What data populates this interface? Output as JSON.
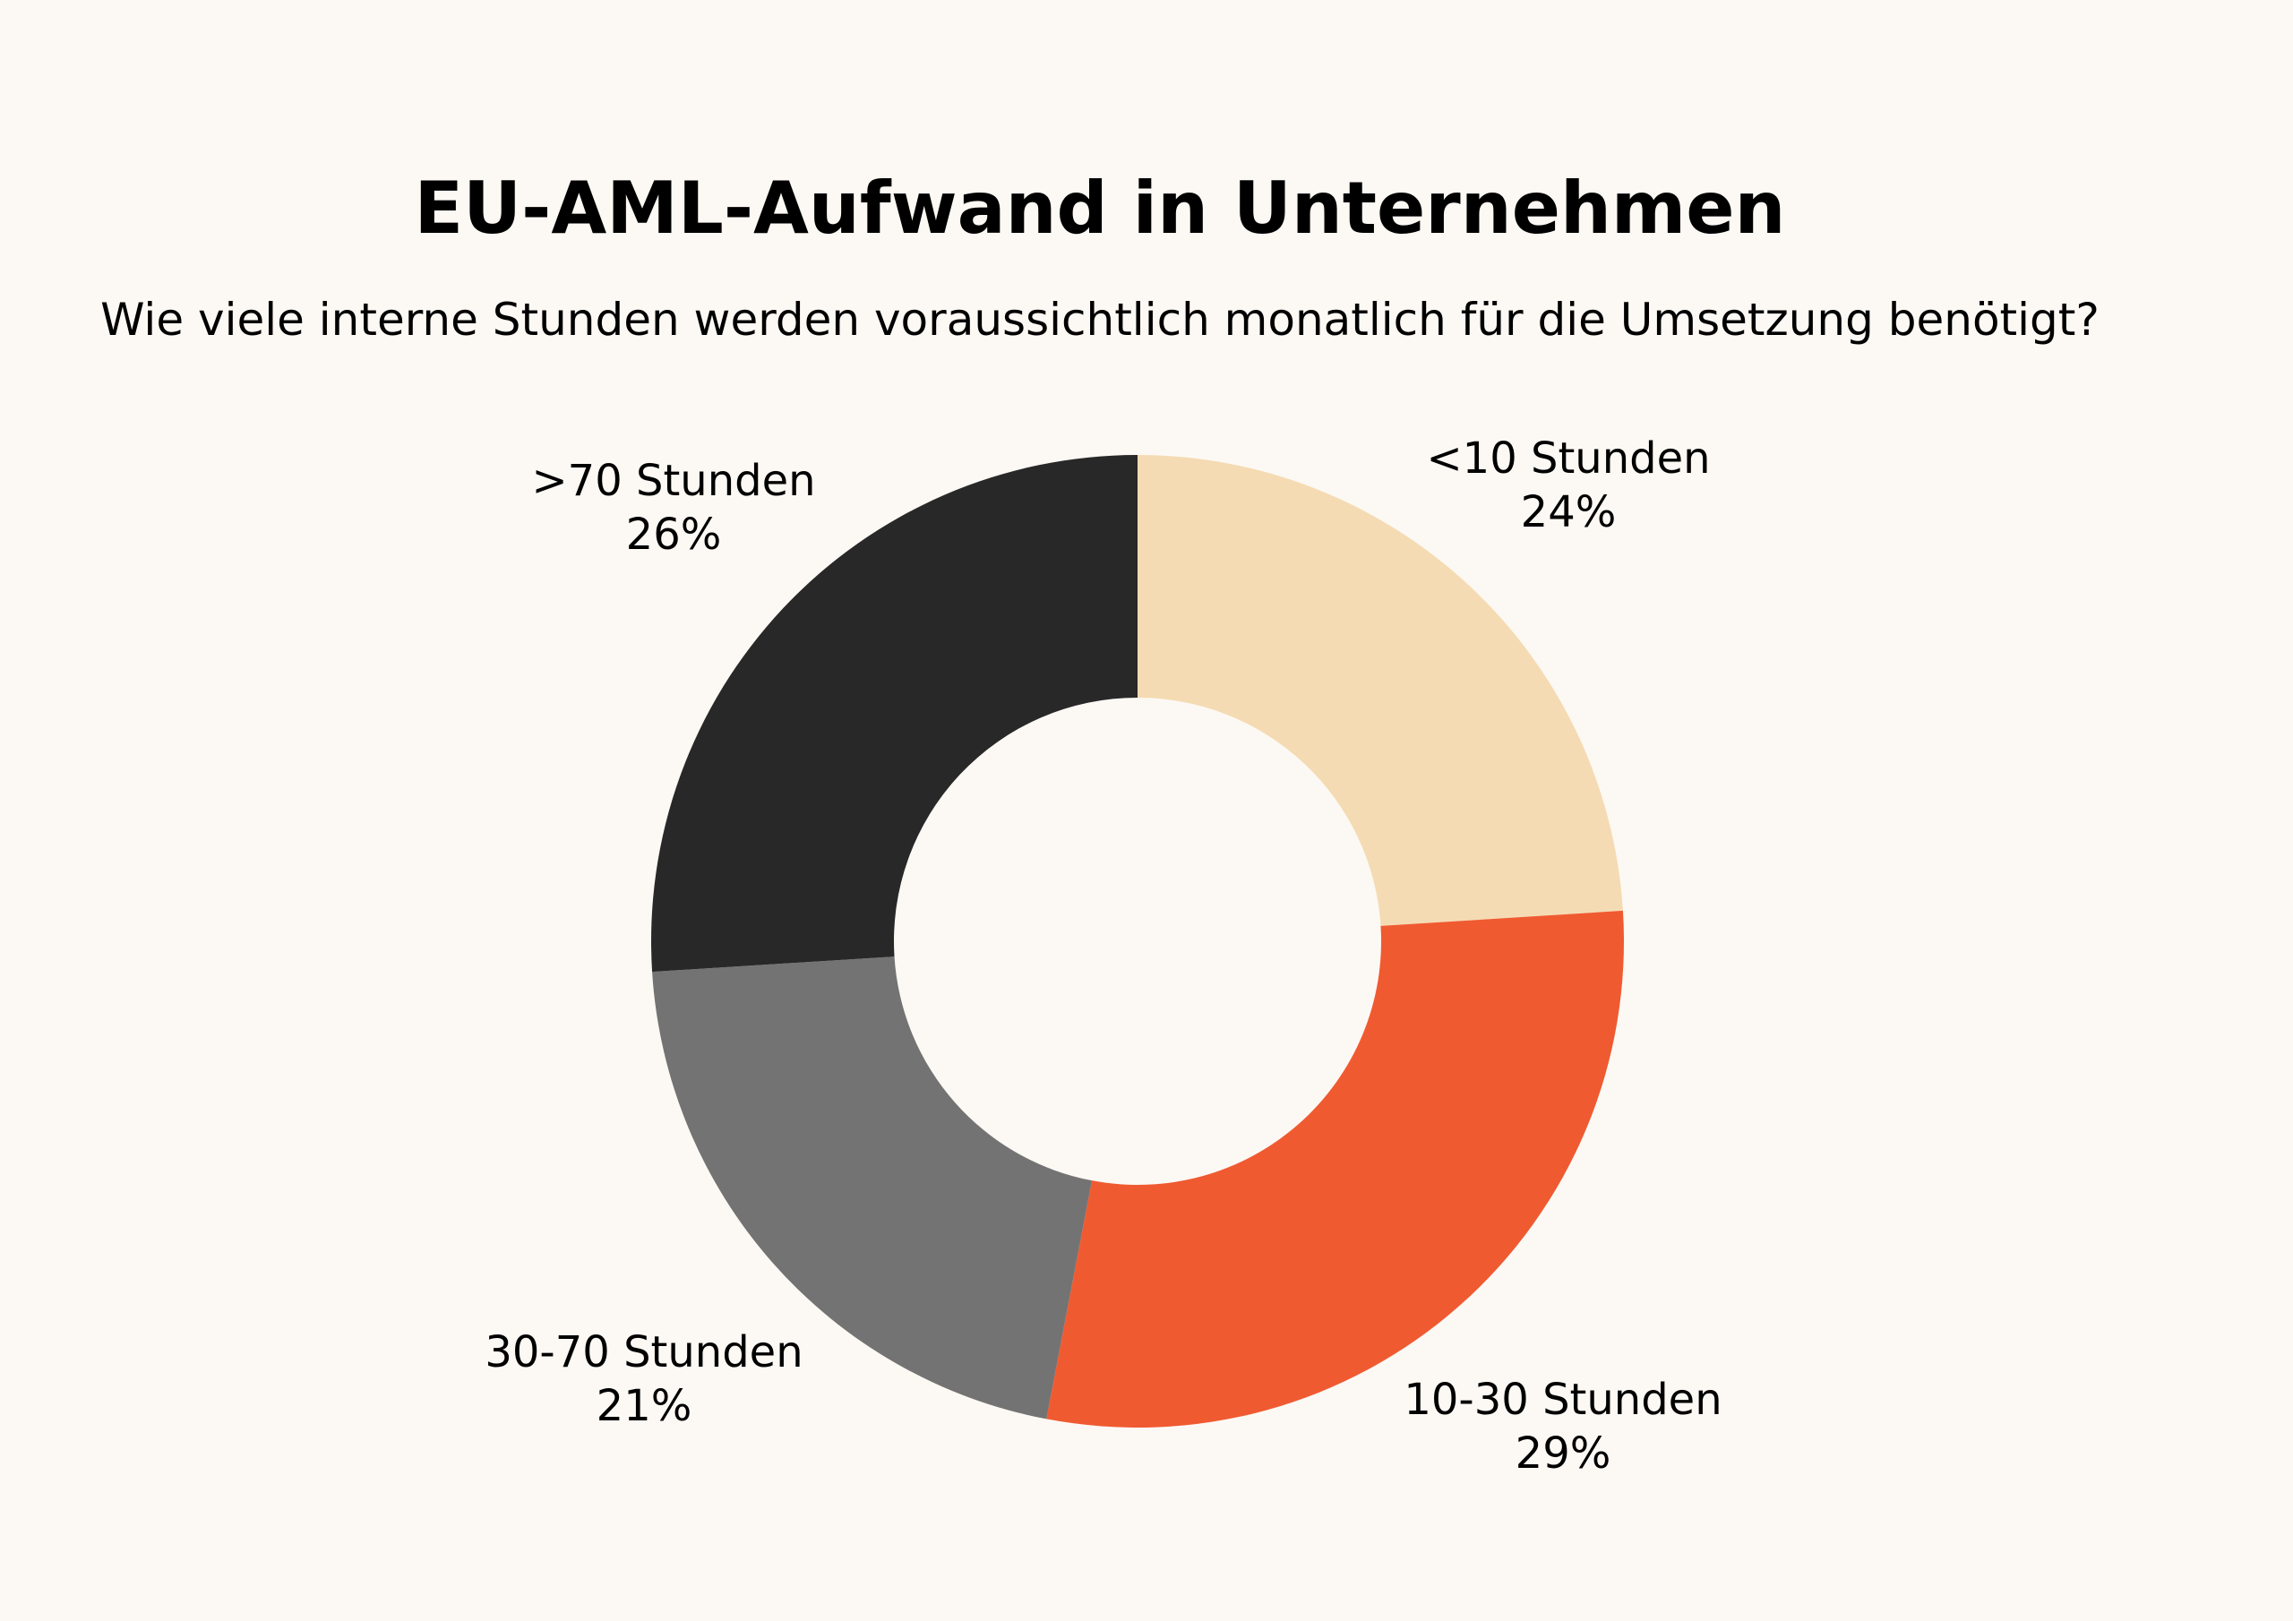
{
  "title": "EU-AML-Aufwand in Unternehmen",
  "subtitle": "Wie viele interne Stunden werden voraussichtlich monatlich für die Umsetzung benötigt?",
  "colors": {
    "background": "#fcf9f4",
    "less_than_10": "#f5dbb3",
    "10_to_30": "#f05a31",
    "30_to_70": "#737373",
    "more_than_70": "#282828"
  },
  "chart_data": {
    "type": "pie",
    "style": "donut",
    "title": "EU-AML-Aufwand in Unternehmen",
    "subtitle": "Wie viele interne Stunden werden voraussichtlich monatlich für die Umsetzung benötigt?",
    "start": "top, clockwise",
    "slices": [
      {
        "label": "<10 Stunden",
        "value": 24,
        "display": "24%",
        "color": "#f5dbb3"
      },
      {
        "label": "10-30 Stunden",
        "value": 29,
        "display": "29%",
        "color": "#f05a31"
      },
      {
        "label": "30-70 Stunden",
        "value": 21,
        "display": "21%",
        "color": "#737373"
      },
      {
        "label": ">70 Stunden",
        "value": 26,
        "display": "26%",
        "color": "#282828"
      }
    ]
  }
}
